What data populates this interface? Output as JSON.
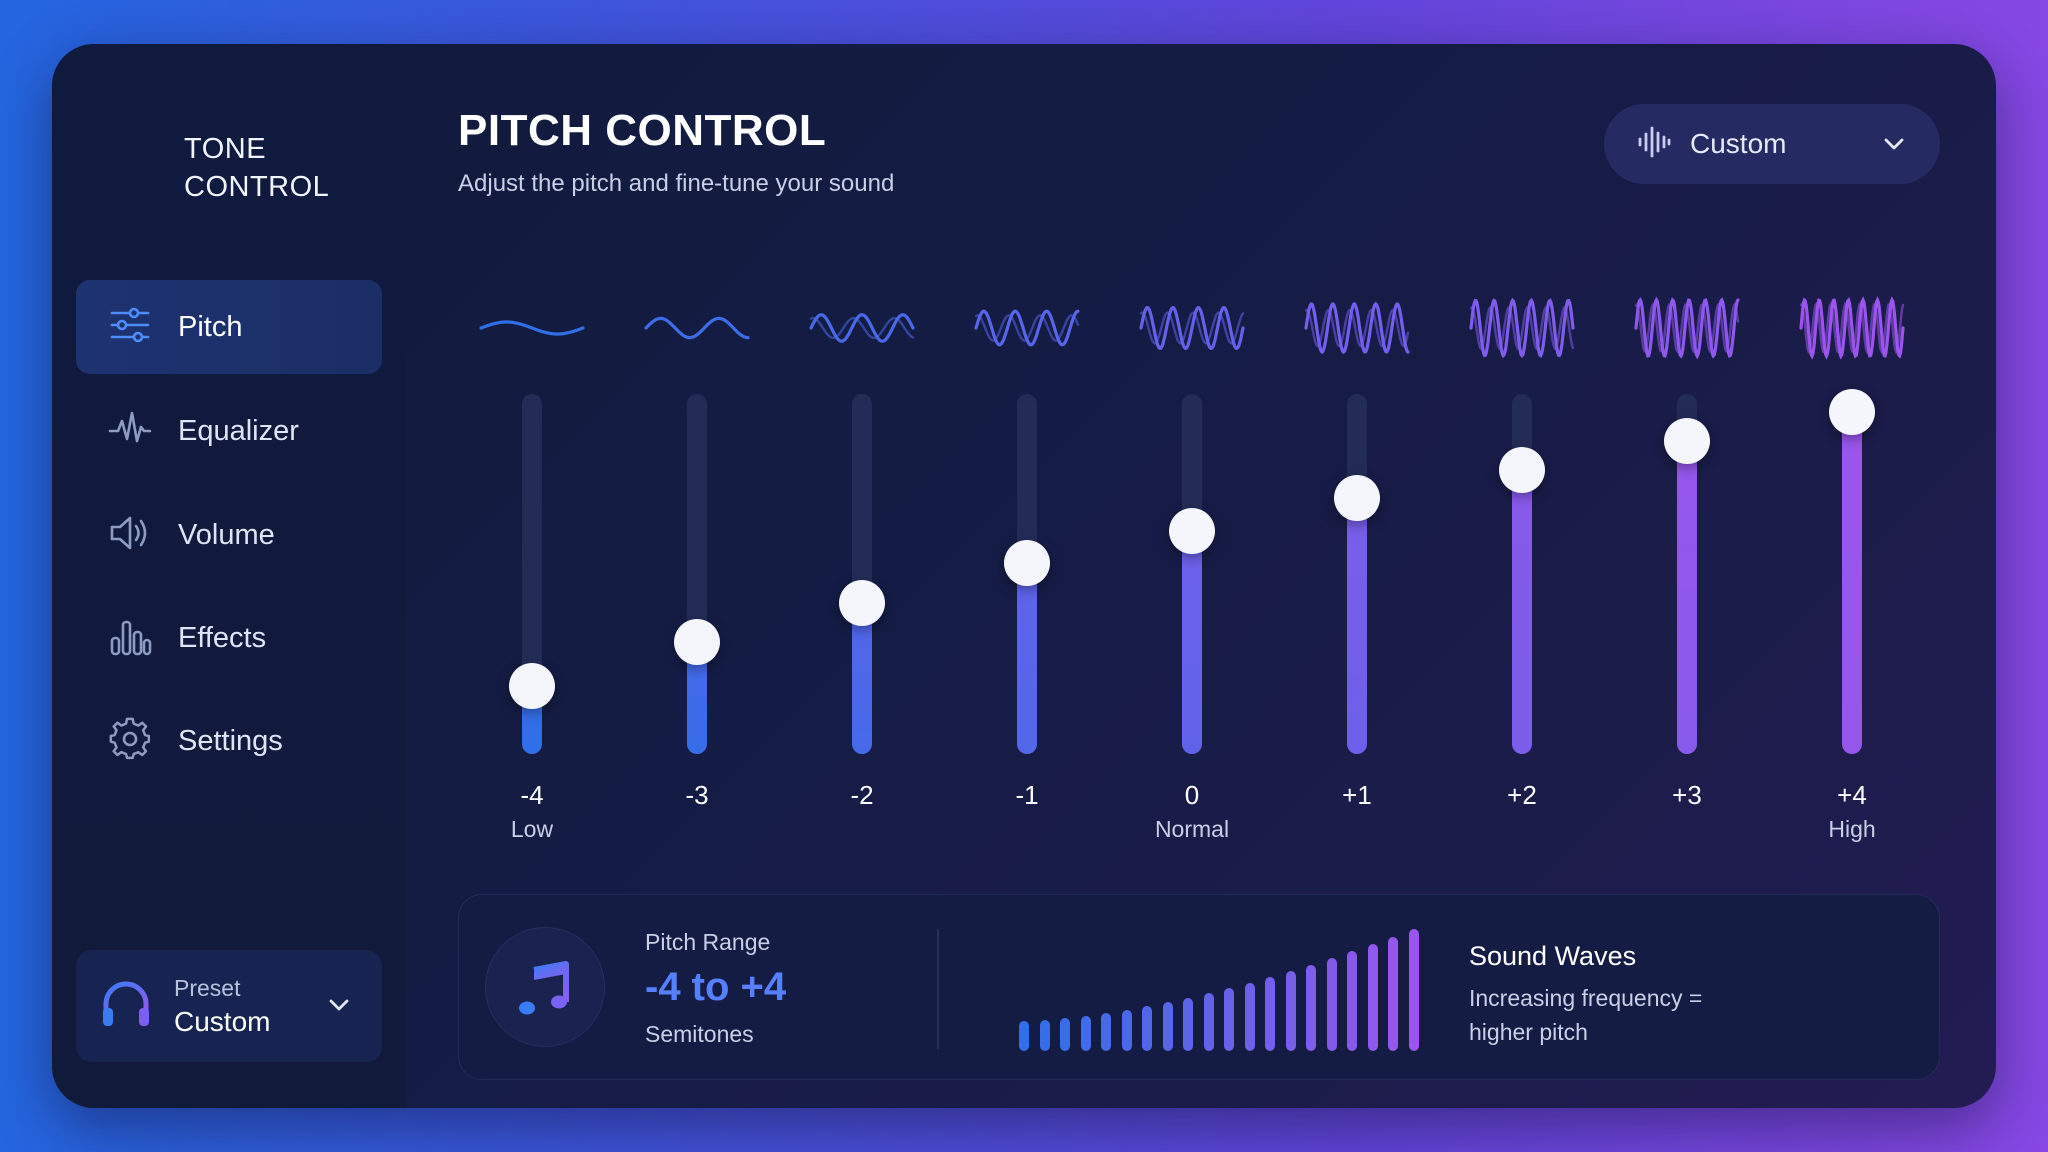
{
  "brand": {
    "line1": "TONE",
    "line2": "CONTROL",
    "icon": "waveform-logo-icon"
  },
  "sidebar": {
    "items": [
      {
        "label": "Pitch",
        "icon": "sliders-icon",
        "active": true
      },
      {
        "label": "Equalizer",
        "icon": "pulse-icon",
        "active": false
      },
      {
        "label": "Volume",
        "icon": "speaker-icon",
        "active": false
      },
      {
        "label": "Effects",
        "icon": "bar-chart-icon",
        "active": false
      },
      {
        "label": "Settings",
        "icon": "gear-icon",
        "active": false
      }
    ],
    "preset": {
      "caption": "Preset",
      "value": "Custom",
      "icon": "headphones-icon"
    }
  },
  "header": {
    "title": "PITCH CONTROL",
    "subtitle": "Adjust the pitch and fine-tune your sound"
  },
  "dropdown": {
    "label": "Custom",
    "icon": "audio-wave-icon"
  },
  "sliders": [
    {
      "value": "-4",
      "caption": "Low",
      "level": 0.19
    },
    {
      "value": "-3",
      "caption": "",
      "level": 0.31
    },
    {
      "value": "-2",
      "caption": "",
      "level": 0.42
    },
    {
      "value": "-1",
      "caption": "",
      "level": 0.53
    },
    {
      "value": "0",
      "caption": "Normal",
      "level": 0.62
    },
    {
      "value": "+1",
      "caption": "",
      "level": 0.71
    },
    {
      "value": "+2",
      "caption": "",
      "level": 0.79
    },
    {
      "value": "+3",
      "caption": "",
      "level": 0.87
    },
    {
      "value": "+4",
      "caption": "High",
      "level": 0.95
    }
  ],
  "info": {
    "range_caption": "Pitch Range",
    "range_value": "-4 to +4",
    "range_unit": "Semitones",
    "waves_title": "Sound Waves",
    "waves_desc": "Increasing frequency = higher pitch",
    "icon": "music-note-icon"
  },
  "colors": {
    "accent_blue": "#2f6fe8",
    "accent_purple": "#9b55ec",
    "thumb": "#f5f6fb"
  }
}
